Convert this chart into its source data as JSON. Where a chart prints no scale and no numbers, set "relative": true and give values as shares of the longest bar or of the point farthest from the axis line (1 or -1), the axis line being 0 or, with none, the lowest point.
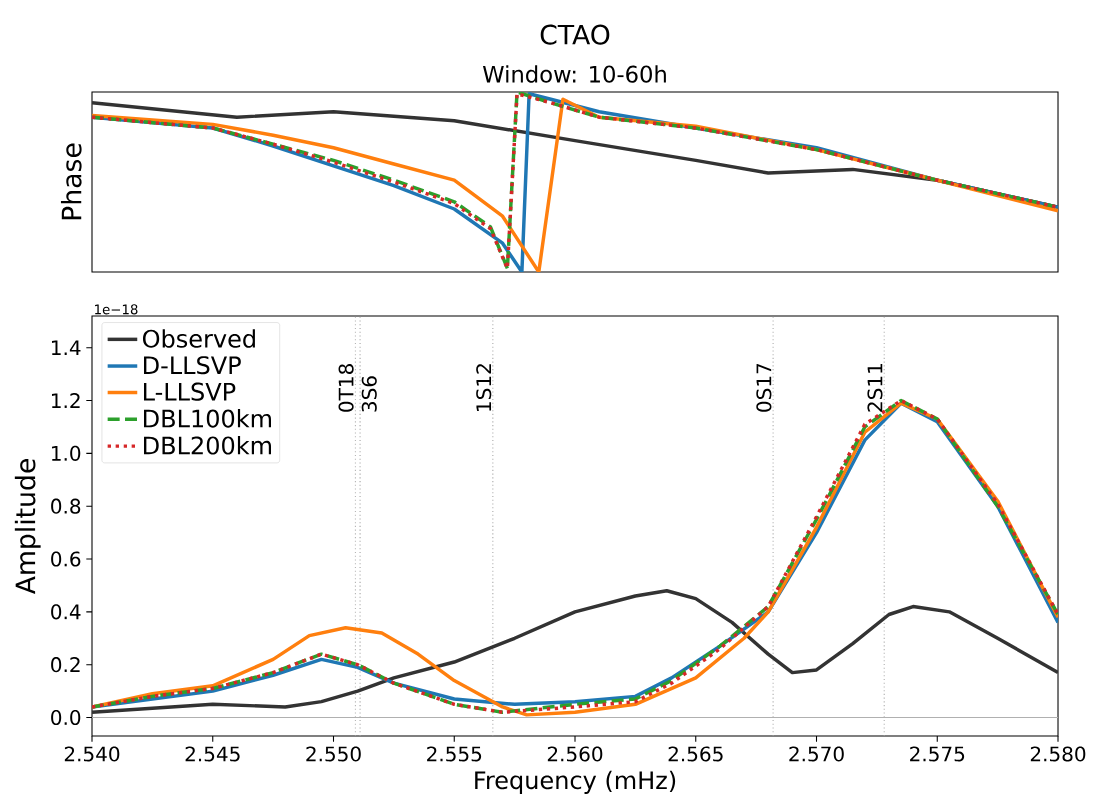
{
  "chart_data": [
    {
      "type": "line",
      "title": "CTAO",
      "subtitle": "Window: 10-60h",
      "ylabel": "Phase",
      "relative": true,
      "xlim": [
        2.54,
        2.58
      ],
      "series": [
        {
          "color": "#333333",
          "x": [
            2.54,
            2.546,
            2.55,
            2.555,
            2.56,
            2.565,
            2.568,
            2.5715,
            2.575,
            2.58
          ],
          "values": [
            0.94,
            0.86,
            0.89,
            0.84,
            0.73,
            0.62,
            0.55,
            0.57,
            0.51,
            0.36
          ]
        },
        {
          "color": "#1f77b4",
          "x": [
            2.54,
            2.545,
            2.5475,
            2.55,
            2.5525,
            2.555,
            2.557,
            2.5578,
            2.5581,
            2.559,
            2.561,
            2.565,
            2.57,
            2.575,
            2.58
          ],
          "values": [
            0.86,
            0.8,
            0.7,
            0.59,
            0.48,
            0.35,
            0.16,
            0,
            0.99,
            0.96,
            0.89,
            0.8,
            0.69,
            0.51,
            0.36
          ]
        },
        {
          "color": "#ff7f0e",
          "x": [
            2.54,
            2.545,
            2.5475,
            2.55,
            2.5525,
            2.555,
            2.557,
            2.5585,
            2.5595,
            2.561,
            2.565,
            2.57,
            2.575,
            2.58
          ],
          "values": [
            0.87,
            0.82,
            0.76,
            0.69,
            0.6,
            0.51,
            0.31,
            0,
            0.96,
            0.86,
            0.81,
            0.68,
            0.51,
            0.34
          ]
        },
        {
          "color": "#2ca02c",
          "line_style": "dashed",
          "x": [
            2.54,
            2.545,
            2.5475,
            2.55,
            2.5525,
            2.555,
            2.5565,
            2.5572,
            2.5576,
            2.559,
            2.561,
            2.565,
            2.57,
            2.575,
            2.58
          ],
          "values": [
            0.86,
            0.8,
            0.71,
            0.62,
            0.51,
            0.39,
            0.25,
            0.02,
            1,
            0.94,
            0.86,
            0.8,
            0.68,
            0.51,
            0.36
          ]
        },
        {
          "color": "#d62728",
          "line_style": "dotted",
          "x": [
            2.54,
            2.545,
            2.5475,
            2.55,
            2.5525,
            2.555,
            2.5565,
            2.5572,
            2.5576,
            2.559,
            2.561,
            2.565,
            2.57,
            2.575,
            2.58
          ],
          "values": [
            0.86,
            0.8,
            0.71,
            0.61,
            0.5,
            0.38,
            0.24,
            0.02,
            0.99,
            0.94,
            0.86,
            0.8,
            0.68,
            0.51,
            0.36
          ]
        }
      ]
    },
    {
      "type": "line",
      "xlabel": "Frequency (mHz)",
      "ylabel": "Amplitude",
      "annotations": [
        "1e−18"
      ],
      "xlim": [
        2.54,
        2.58
      ],
      "ylim": [
        -0.07,
        1.52
      ],
      "xticks": [
        {
          "value": 2.54,
          "label": "2.540"
        },
        {
          "value": 2.545,
          "label": "2.545"
        },
        {
          "value": 2.55,
          "label": "2.550"
        },
        {
          "value": 2.555,
          "label": "2.555"
        },
        {
          "value": 2.56,
          "label": "2.560"
        },
        {
          "value": 2.565,
          "label": "2.565"
        },
        {
          "value": 2.57,
          "label": "2.570"
        },
        {
          "value": 2.575,
          "label": "2.575"
        },
        {
          "value": 2.58,
          "label": "2.580"
        }
      ],
      "yticks": [
        {
          "value": 0,
          "label": "0.0"
        },
        0.2,
        0.4,
        0.6,
        0.8,
        {
          "value": 1,
          "label": "1.0"
        },
        1.2,
        1.4
      ],
      "legend": "top left",
      "ref_lines": [
        {
          "axis": "x",
          "value": 2.5509,
          "label": "0T18",
          "color": "#a0a0a0",
          "line_style": "dotted"
        },
        {
          "axis": "x",
          "value": 2.5511,
          "label": "3S6",
          "color": "#a0a0a0",
          "line_style": "dotted"
        },
        {
          "axis": "x",
          "value": 2.5566,
          "label": "1S12",
          "color": "#a0a0a0",
          "line_style": "dotted"
        },
        {
          "axis": "x",
          "value": 2.5682,
          "label": "0S17",
          "color": "#a0a0a0",
          "line_style": "dotted"
        },
        {
          "axis": "x",
          "value": 2.5728,
          "label": "2S11",
          "color": "#a0a0a0",
          "line_style": "dotted"
        },
        {
          "axis": "y",
          "value": 0,
          "color": "#b0b0b0",
          "line_style": "solid"
        }
      ],
      "series": [
        {
          "name": "Observed",
          "color": "#333333",
          "x": [
            2.54,
            2.545,
            2.548,
            2.5495,
            2.551,
            2.5525,
            2.555,
            2.5575,
            2.56,
            2.5625,
            2.5638,
            2.565,
            2.5665,
            2.568,
            2.569,
            2.57,
            2.5715,
            2.573,
            2.574,
            2.5755,
            2.5775,
            2.58
          ],
          "values": [
            0.02,
            0.05,
            0.04,
            0.06,
            0.1,
            0.15,
            0.21,
            0.3,
            0.4,
            0.46,
            0.48,
            0.45,
            0.36,
            0.24,
            0.17,
            0.18,
            0.28,
            0.39,
            0.42,
            0.4,
            0.3,
            0.17
          ]
        },
        {
          "name": "D-LLSVP",
          "color": "#1f77b4",
          "x": [
            2.54,
            2.5425,
            2.545,
            2.5475,
            2.5495,
            2.551,
            2.5525,
            2.555,
            2.5575,
            2.56,
            2.5625,
            2.564,
            2.566,
            2.568,
            2.57,
            2.572,
            2.5735,
            2.575,
            2.5775,
            2.58
          ],
          "values": [
            0.04,
            0.07,
            0.1,
            0.16,
            0.22,
            0.19,
            0.13,
            0.07,
            0.05,
            0.06,
            0.08,
            0.15,
            0.27,
            0.4,
            0.7,
            1.05,
            1.19,
            1.12,
            0.8,
            0.36
          ]
        },
        {
          "name": "L-LLSVP",
          "color": "#ff7f0e",
          "x": [
            2.54,
            2.5425,
            2.545,
            2.5475,
            2.549,
            2.5505,
            2.552,
            2.5535,
            2.555,
            2.557,
            2.558,
            2.56,
            2.5625,
            2.565,
            2.567,
            2.568,
            2.57,
            2.572,
            2.5735,
            2.575,
            2.5775,
            2.58
          ],
          "values": [
            0.04,
            0.09,
            0.12,
            0.22,
            0.31,
            0.34,
            0.32,
            0.24,
            0.14,
            0.04,
            0.01,
            0.02,
            0.05,
            0.15,
            0.3,
            0.4,
            0.72,
            1.08,
            1.19,
            1.13,
            0.82,
            0.38
          ]
        },
        {
          "name": "DBL100km",
          "color": "#2ca02c",
          "line_style": "dashed",
          "x": [
            2.54,
            2.5425,
            2.545,
            2.5475,
            2.5495,
            2.551,
            2.5525,
            2.555,
            2.557,
            2.56,
            2.5625,
            2.564,
            2.566,
            2.568,
            2.57,
            2.572,
            2.5735,
            2.575,
            2.5775,
            2.58
          ],
          "values": [
            0.04,
            0.08,
            0.11,
            0.17,
            0.24,
            0.2,
            0.13,
            0.05,
            0.02,
            0.05,
            0.07,
            0.14,
            0.27,
            0.42,
            0.75,
            1.1,
            1.2,
            1.13,
            0.8,
            0.39
          ]
        },
        {
          "name": "DBL200km",
          "color": "#d62728",
          "line_style": "dotted",
          "x": [
            2.54,
            2.5425,
            2.545,
            2.5475,
            2.5495,
            2.551,
            2.5525,
            2.555,
            2.557,
            2.56,
            2.5625,
            2.564,
            2.566,
            2.568,
            2.57,
            2.572,
            2.5735,
            2.575,
            2.5775,
            2.58
          ],
          "values": [
            0.04,
            0.08,
            0.11,
            0.17,
            0.24,
            0.2,
            0.13,
            0.05,
            0.02,
            0.04,
            0.06,
            0.13,
            0.26,
            0.42,
            0.76,
            1.11,
            1.2,
            1.13,
            0.81,
            0.39
          ]
        }
      ]
    }
  ]
}
